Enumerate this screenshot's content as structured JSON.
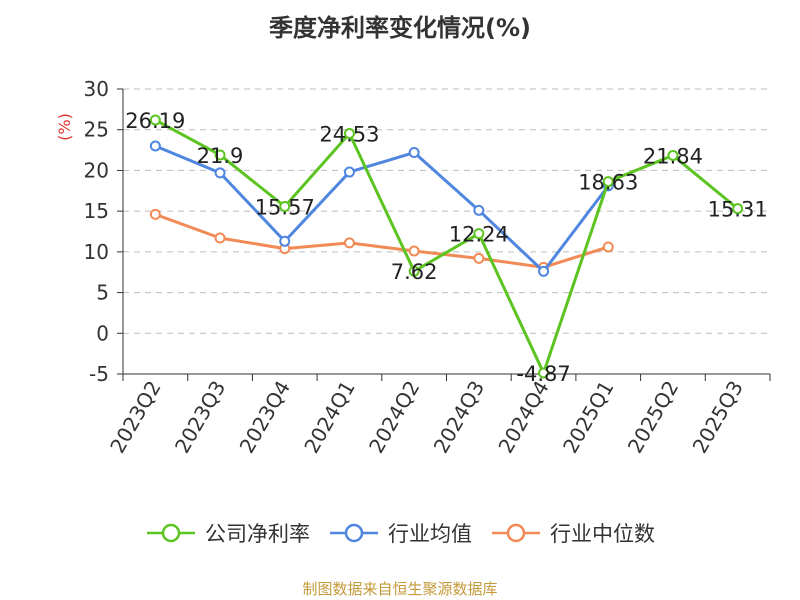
{
  "chart_data": {
    "type": "line",
    "title": "季度净利率变化情况(%)",
    "ylabel": "(%)",
    "xlabel": "",
    "categories": [
      "2023Q2",
      "2023Q3",
      "2023Q4",
      "2024Q1",
      "2024Q2",
      "2024Q3",
      "2024Q4",
      "2025Q1",
      "2025Q2",
      "2025Q3"
    ],
    "ylim": [
      -5,
      30
    ],
    "yticks": [
      -5,
      0,
      5,
      10,
      15,
      20,
      25,
      30
    ],
    "grid": true,
    "legend_position": "bottom",
    "series": [
      {
        "name": "公司净利率",
        "color": "#5cc420",
        "values": [
          26.19,
          21.9,
          15.57,
          24.53,
          7.62,
          12.24,
          -4.87,
          18.63,
          21.84,
          15.31
        ],
        "labels": [
          "26.19",
          "21.9",
          "15.57",
          "24.53",
          "7.62",
          "12.24",
          "-4.87",
          "18.63",
          "21.84",
          "15.31"
        ]
      },
      {
        "name": "行业均值",
        "color": "#4f86e0",
        "values": [
          23.0,
          19.7,
          11.3,
          19.8,
          22.2,
          15.1,
          7.6,
          18.1,
          null,
          null
        ]
      },
      {
        "name": "行业中位数",
        "color": "#f28a55",
        "values": [
          14.6,
          11.7,
          10.4,
          11.1,
          10.1,
          9.2,
          8.1,
          10.6,
          null,
          null
        ]
      }
    ]
  },
  "source_text": "制图数据来自恒生聚源数据库"
}
